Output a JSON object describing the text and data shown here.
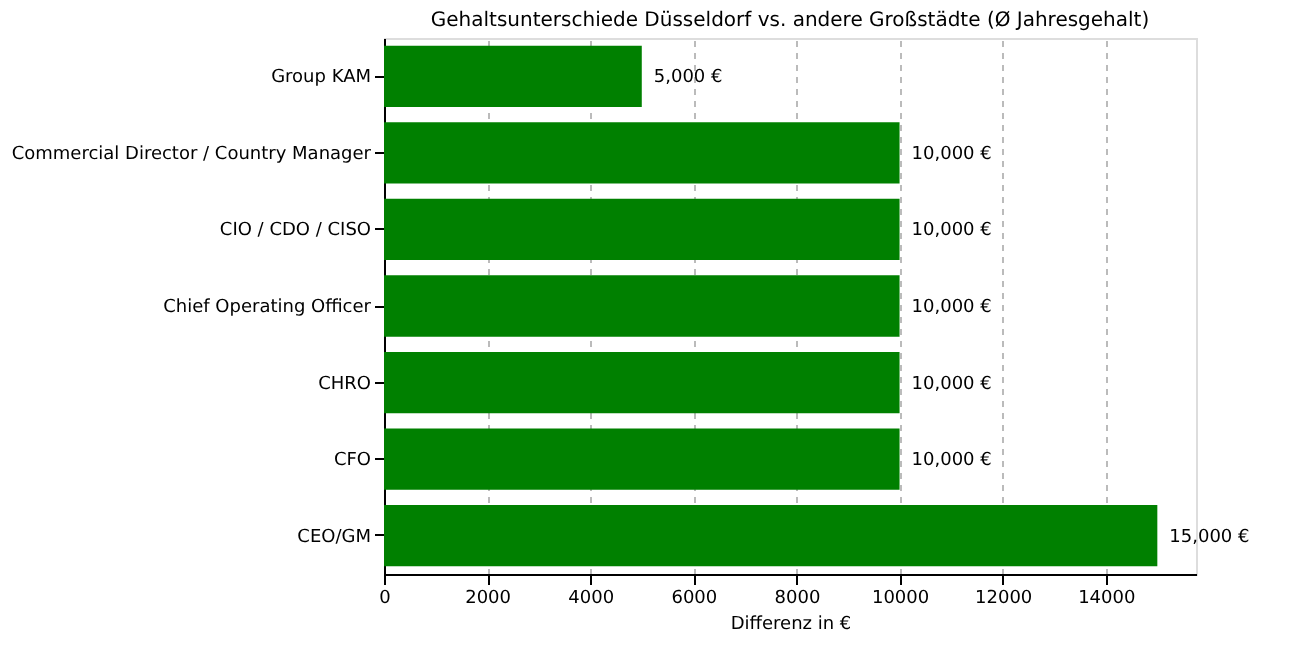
{
  "chart_data": {
    "type": "bar",
    "orientation": "horizontal",
    "title": "Gehaltsunterschiede Düsseldorf vs. andere Großstädte (Ø Jahresgehalt)",
    "xlabel": "Differenz in €",
    "categories": [
      "Group KAM",
      "Commercial Director / Country Manager",
      "CIO / CDO / CISO",
      "Chief Operating Officer",
      "CHRO",
      "CFO",
      "CEO/GM"
    ],
    "values": [
      5000,
      10000,
      10000,
      10000,
      10000,
      10000,
      15000
    ],
    "value_labels": [
      "5,000 €",
      "10,000 €",
      "10,000 €",
      "10,000 €",
      "10,000 €",
      "10,000 €",
      "15,000 €"
    ],
    "color": "#008000",
    "xlim": [
      0,
      15750
    ],
    "xticks": [
      0,
      2000,
      4000,
      6000,
      8000,
      10000,
      12000,
      14000
    ],
    "grid": "x",
    "line_style": "dashed"
  }
}
